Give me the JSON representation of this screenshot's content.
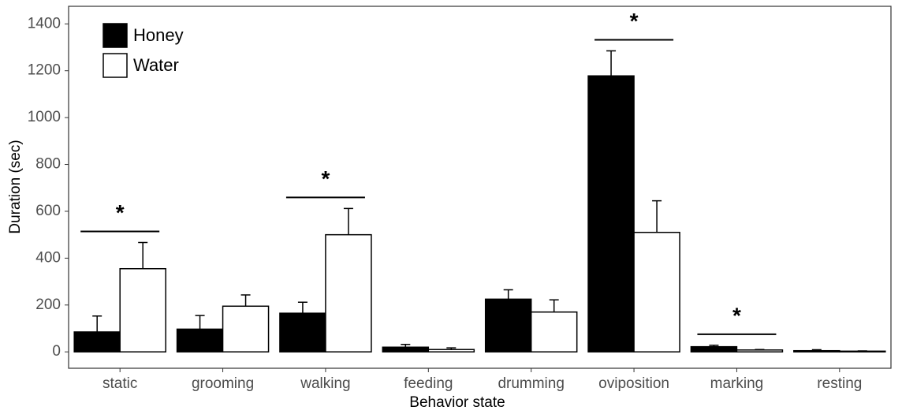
{
  "chart_data": {
    "type": "bar",
    "xlabel": "Behavior state",
    "ylabel": "Duration (sec)",
    "categories": [
      "static",
      "grooming",
      "walking",
      "feeding",
      "drumming",
      "oviposition",
      "marking",
      "resting"
    ],
    "series": [
      {
        "name": "Honey",
        "color": "#000000",
        "values": [
          85,
          97,
          165,
          20,
          225,
          1178,
          22,
          5
        ],
        "error": [
          68,
          58,
          47,
          12,
          40,
          107,
          6,
          4
        ]
      },
      {
        "name": "Water",
        "color": "#ffffff",
        "values": [
          355,
          195,
          500,
          10,
          170,
          510,
          8,
          3
        ],
        "error": [
          112,
          48,
          112,
          7,
          52,
          135,
          2,
          1
        ]
      }
    ],
    "annotations": [
      {
        "category": "static",
        "label": "*"
      },
      {
        "category": "walking",
        "label": "*"
      },
      {
        "category": "oviposition",
        "label": "*"
      },
      {
        "category": "marking",
        "label": "*"
      }
    ],
    "ylim": [
      -70,
      1475
    ],
    "yticks": [
      0,
      200,
      400,
      600,
      800,
      1000,
      1200,
      1400
    ],
    "legend": "top-left",
    "grid": false
  }
}
